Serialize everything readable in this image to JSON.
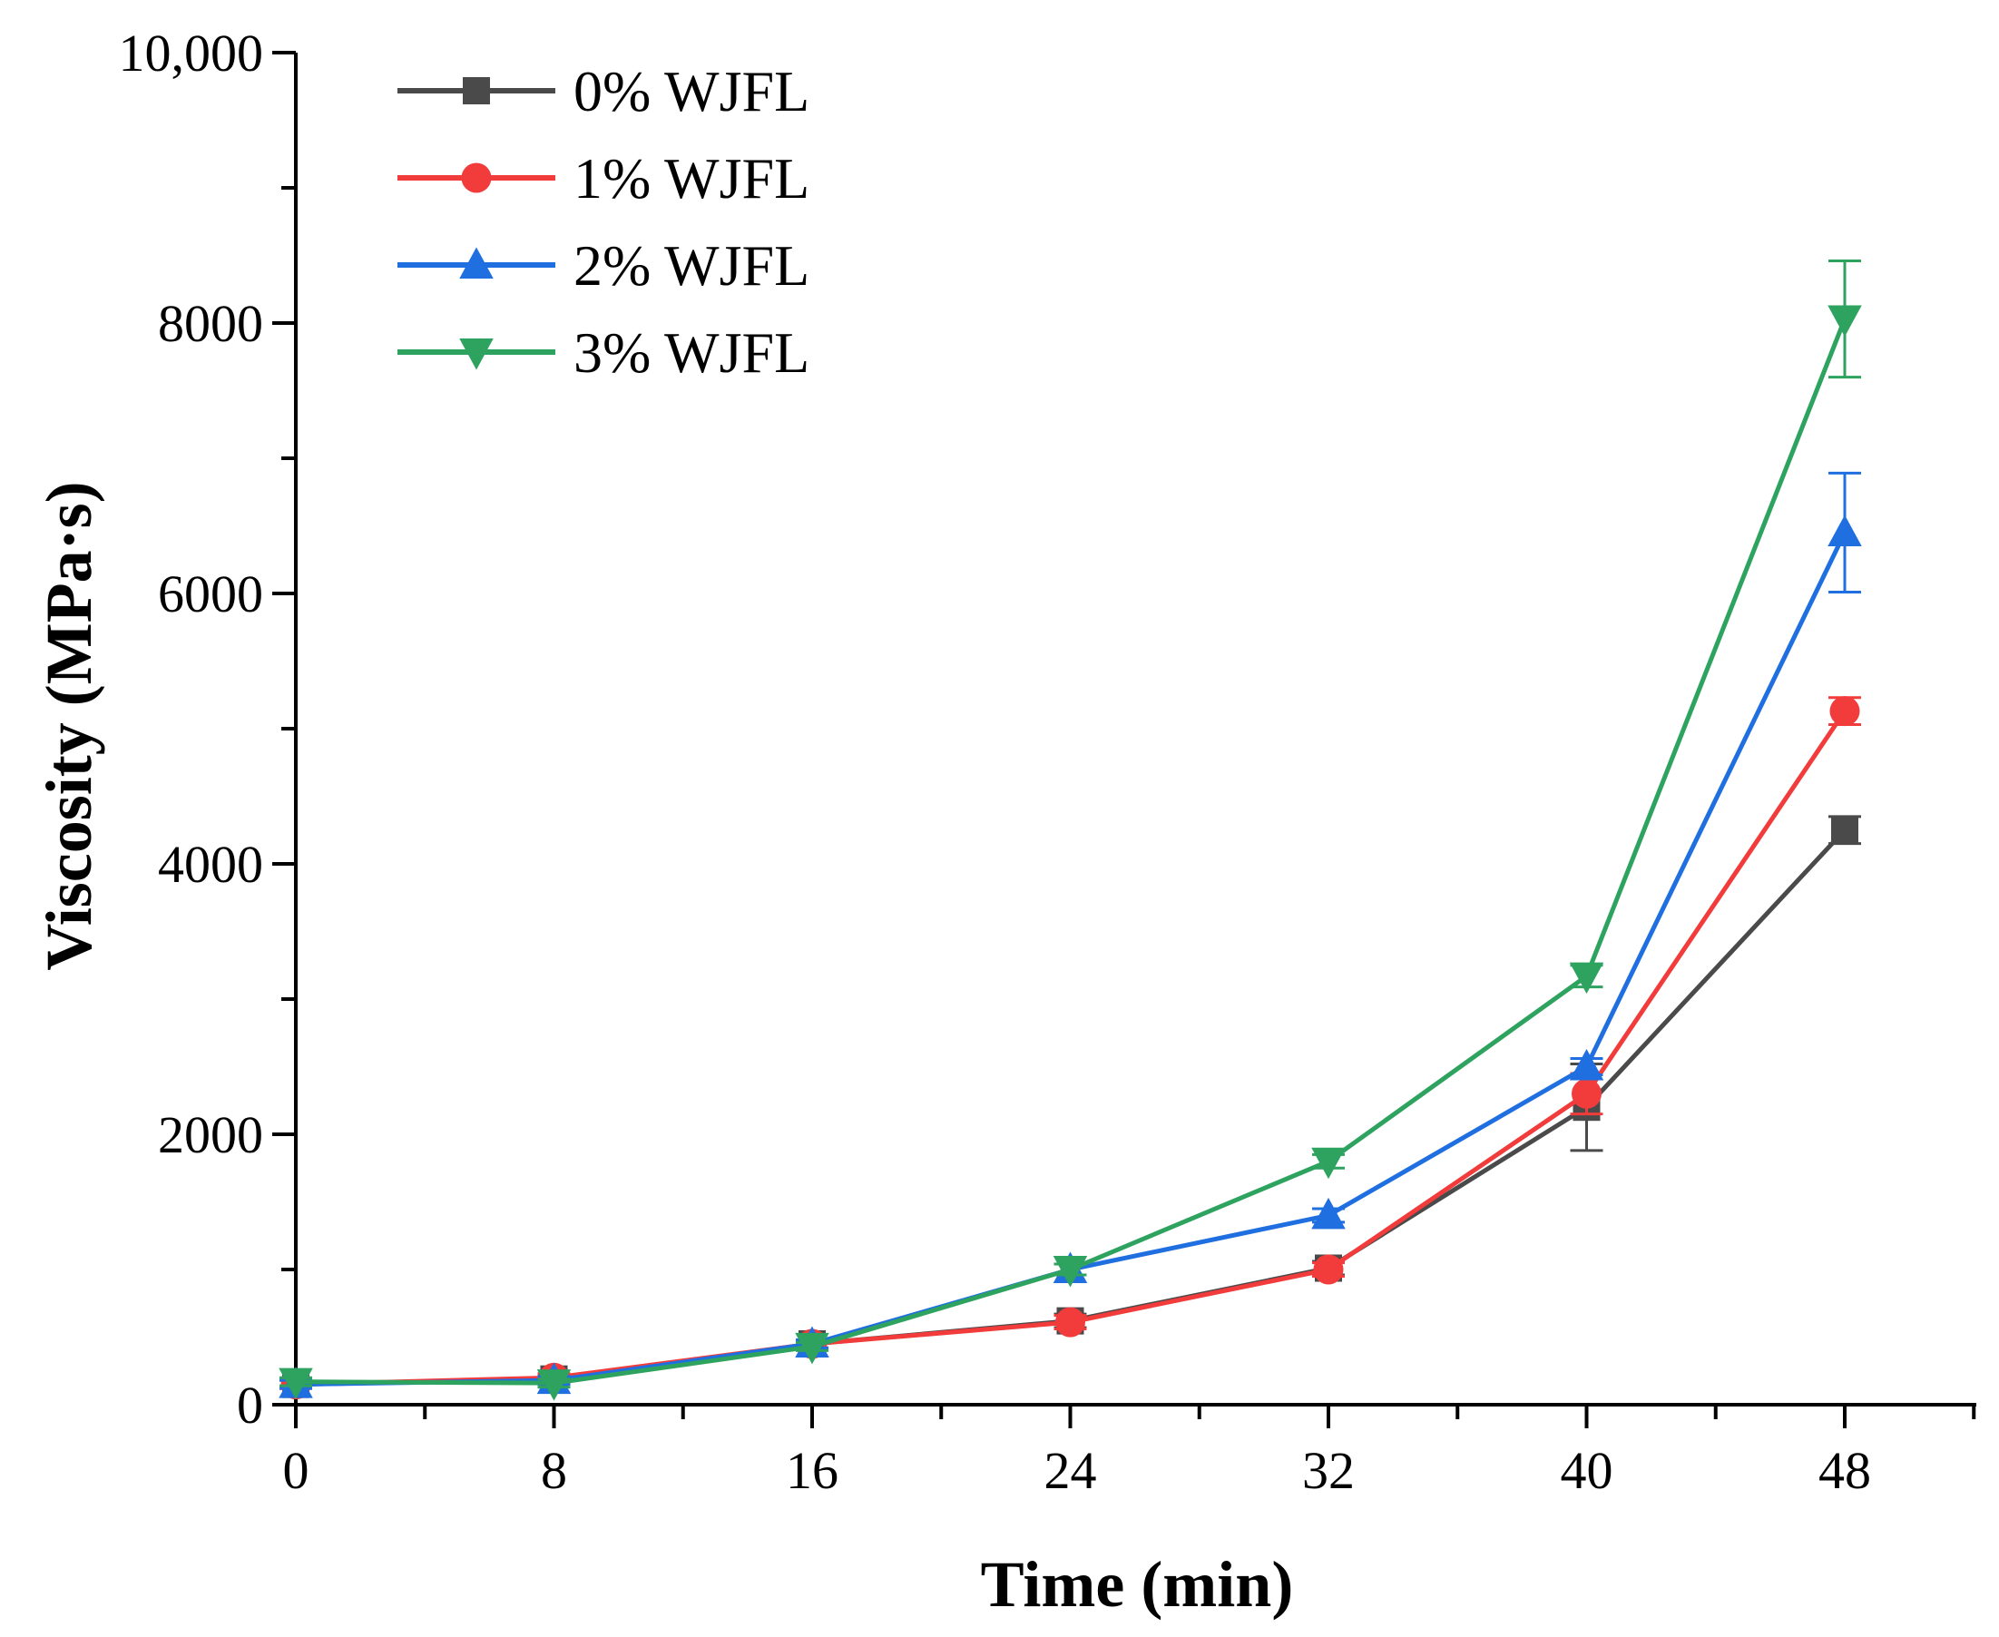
{
  "chart_data": {
    "type": "line",
    "title": "",
    "xlabel": "Time (min)",
    "ylabel": "Viscosity (MPa·s)",
    "xlim": [
      0,
      52
    ],
    "ylim": [
      0,
      10000
    ],
    "xticks": [
      0,
      8,
      16,
      24,
      32,
      40,
      48
    ],
    "xtick_labels": [
      "0",
      "8",
      "16",
      "24",
      "32",
      "40",
      "48"
    ],
    "yticks": [
      0,
      2000,
      4000,
      6000,
      8000,
      10000
    ],
    "ytick_labels": [
      "0",
      "2000",
      "4000",
      "6000",
      "8000",
      "10,000"
    ],
    "grid": false,
    "legend_position": "top-left",
    "x": [
      0,
      8,
      16,
      24,
      32,
      40,
      48
    ],
    "series": [
      {
        "name": "0% WJFL",
        "color": "#4a4a4a",
        "marker": "square",
        "values": [
          150,
          190,
          450,
          620,
          1010,
          2200,
          4250
        ],
        "errors": [
          30,
          30,
          30,
          50,
          50,
          320,
          100
        ]
      },
      {
        "name": "1% WJFL",
        "color": "#f23c3c",
        "marker": "circle",
        "values": [
          150,
          200,
          450,
          610,
          1000,
          2300,
          5130
        ],
        "errors": [
          30,
          30,
          30,
          50,
          50,
          150,
          100
        ]
      },
      {
        "name": "2% WJFL",
        "color": "#1f6fe0",
        "marker": "triangle-up",
        "values": [
          150,
          180,
          450,
          1000,
          1400,
          2500,
          6450
        ],
        "errors": [
          30,
          30,
          30,
          40,
          50,
          60,
          440
        ]
      },
      {
        "name": "3% WJFL",
        "color": "#2ea35f",
        "marker": "triangle-down",
        "values": [
          170,
          160,
          430,
          1000,
          1800,
          3170,
          8030
        ],
        "errors": [
          30,
          30,
          30,
          40,
          50,
          80,
          430
        ]
      }
    ]
  }
}
